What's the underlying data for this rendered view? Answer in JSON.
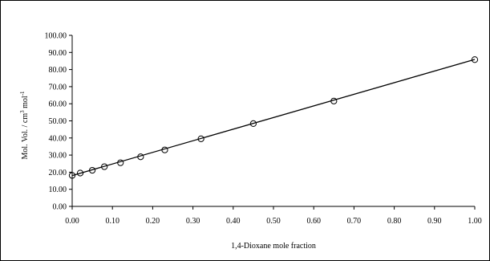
{
  "chart_data": {
    "type": "scatter",
    "title": "",
    "xlabel": "1,4-Dioxane mole fraction",
    "ylabel_main": "Mol. Vol. / cm",
    "ylabel_sup1": "3",
    "ylabel_mid": " mol",
    "ylabel_sup2": "-1",
    "xlim": [
      0,
      1
    ],
    "ylim": [
      0,
      100
    ],
    "x_ticks": [
      "0.00",
      "0.10",
      "0.20",
      "0.30",
      "0.40",
      "0.50",
      "0.60",
      "0.70",
      "0.80",
      "0.90",
      "1.00"
    ],
    "y_ticks": [
      "0.00",
      "10.00",
      "20.00",
      "30.00",
      "40.00",
      "50.00",
      "60.00",
      "70.00",
      "80.00",
      "90.00",
      "100.00"
    ],
    "grid": false,
    "legend": "none",
    "series": [
      {
        "marker": "open-circle",
        "x": [
          0.0,
          0.02,
          0.05,
          0.08,
          0.12,
          0.17,
          0.23,
          0.32,
          0.45,
          0.65,
          1.0
        ],
        "y": [
          18.1,
          19.5,
          21.1,
          23.2,
          25.5,
          29.0,
          33.0,
          39.5,
          48.4,
          61.6,
          85.8
        ]
      }
    ],
    "fit_line": {
      "x": [
        0.0,
        1.0
      ],
      "y": [
        18.0,
        85.9
      ]
    }
  }
}
